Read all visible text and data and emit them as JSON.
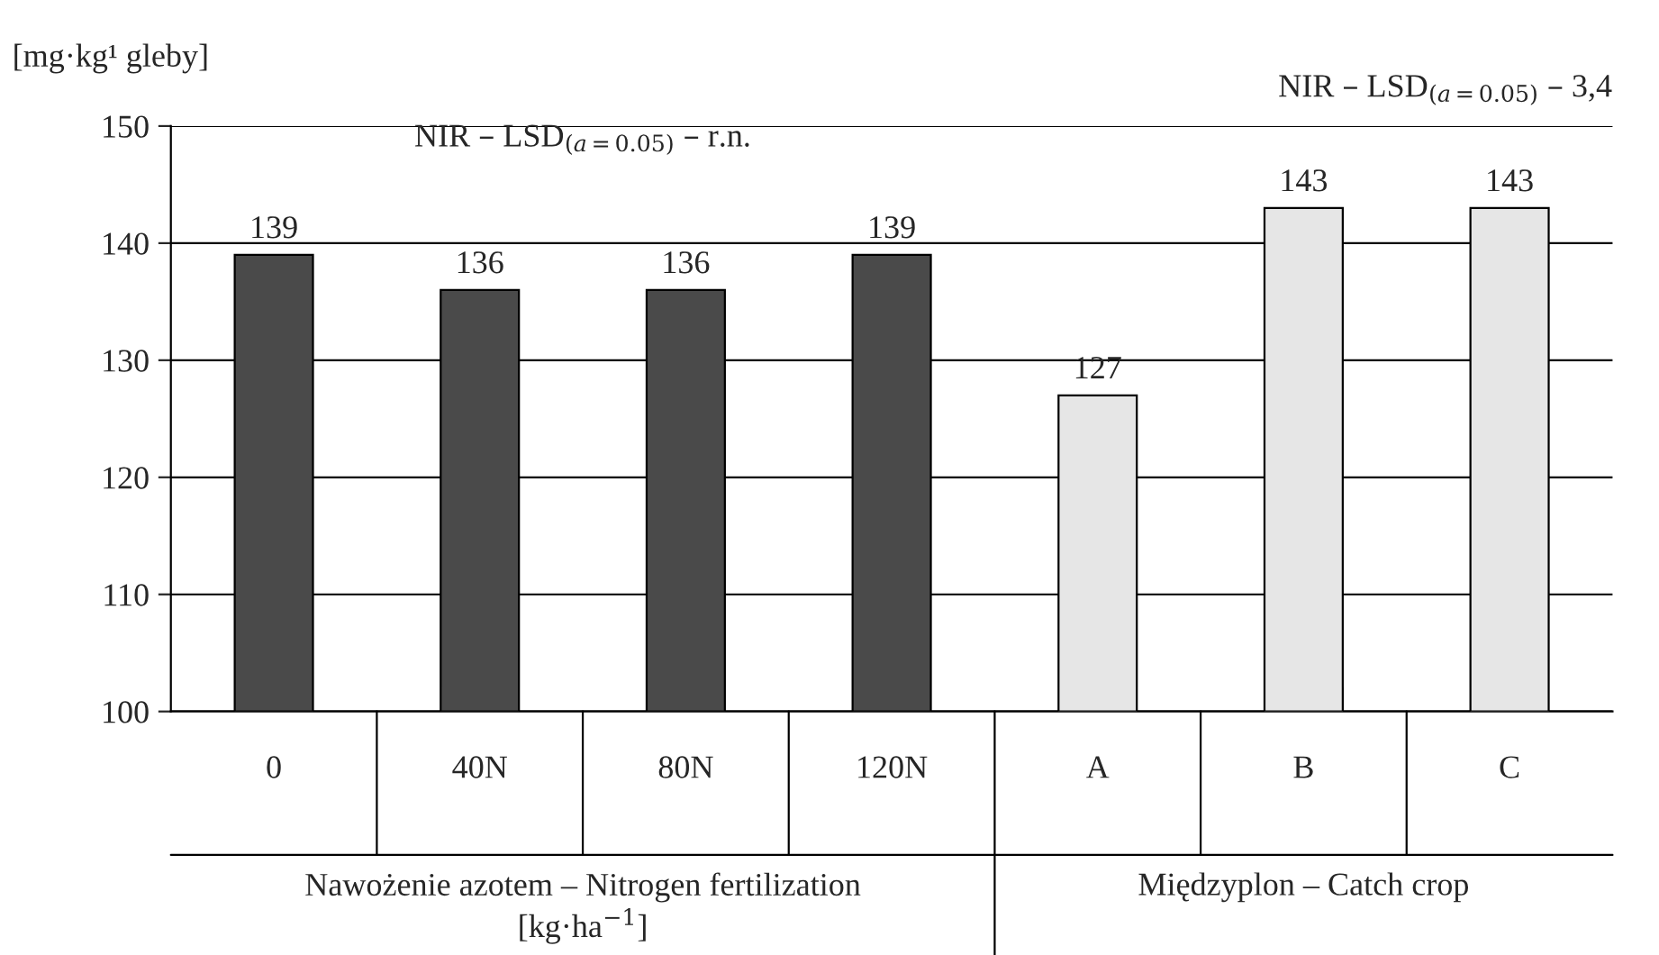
{
  "chart_data": {
    "type": "bar",
    "ylabel": "[mg·kg¹ gleby]",
    "categories": [
      "0",
      "40N",
      "80N",
      "120N",
      "A",
      "B",
      "C"
    ],
    "values": [
      139,
      136,
      136,
      139,
      127,
      143,
      143
    ],
    "colors": [
      "#4a4a4a",
      "#4a4a4a",
      "#4a4a4a",
      "#4a4a4a",
      "#e6e6e6",
      "#e6e6e6",
      "#e6e6e6"
    ],
    "ylim": [
      100,
      150
    ],
    "yticks": [
      100,
      110,
      120,
      130,
      140,
      150
    ],
    "grid": "y",
    "data_labels": true,
    "annotations": [
      "NIR – LSD$_{(a=0.05)}$ – r.n.",
      "NIR – LSD$_{(a=0.05)}$ – 3,4",
      "Nawożenie azotem – Nitrogen fertilization\n[kg·ha$^{−1}$]",
      "Międzyplon – Catch crop"
    ]
  }
}
